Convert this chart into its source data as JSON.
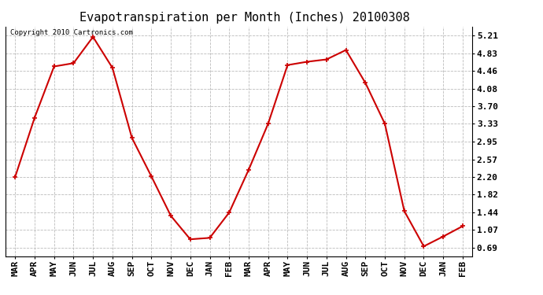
{
  "title": "Evapotranspiration per Month (Inches) 20100308",
  "copyright": "Copyright 2010 Cartronics.com",
  "x_labels": [
    "MAR",
    "APR",
    "MAY",
    "JUN",
    "JUL",
    "AUG",
    "SEP",
    "OCT",
    "NOV",
    "DEC",
    "JAN",
    "FEB",
    "MAR",
    "APR",
    "MAY",
    "JUN",
    "JUL",
    "AUG",
    "SEP",
    "OCT",
    "NOV",
    "DEC",
    "JAN",
    "FEB"
  ],
  "y_values": [
    2.2,
    3.46,
    4.55,
    4.62,
    5.18,
    4.52,
    3.03,
    2.21,
    1.37,
    0.87,
    0.9,
    1.44,
    2.35,
    3.33,
    4.58,
    4.65,
    4.7,
    4.9,
    4.2,
    3.33,
    1.47,
    0.72,
    0.93,
    1.15
  ],
  "line_color": "#cc0000",
  "marker": "+",
  "marker_size": 5,
  "background_color": "#ffffff",
  "plot_bg_color": "#ffffff",
  "grid_color": "#bbbbbb",
  "y_ticks": [
    0.69,
    1.07,
    1.44,
    1.82,
    2.2,
    2.57,
    2.95,
    3.33,
    3.7,
    4.08,
    4.46,
    4.83,
    5.21
  ],
  "ylim": [
    0.5,
    5.4
  ],
  "title_fontsize": 11,
  "copyright_fontsize": 6.5,
  "tick_fontsize": 8,
  "line_width": 1.5
}
